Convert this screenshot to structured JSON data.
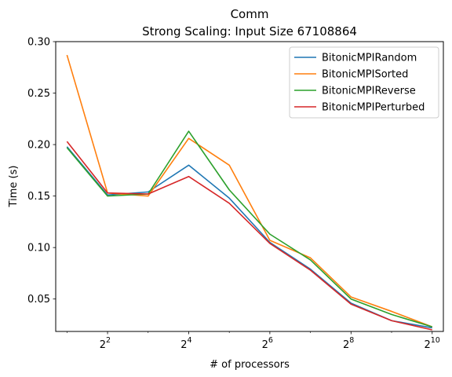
{
  "chart_data": {
    "type": "line",
    "title": "Comm",
    "subtitle": "Strong Scaling: Input Size 67108864",
    "xlabel": "# of processors",
    "ylabel": "Time (s)",
    "x_scale": "log2",
    "x": [
      2,
      4,
      8,
      16,
      32,
      64,
      128,
      256,
      512,
      1024
    ],
    "xlim": [
      1.65,
      1240
    ],
    "ylim": [
      0.0185,
      0.3
    ],
    "x_ticks": [
      {
        "value": 4,
        "base": "2",
        "exp": "2"
      },
      {
        "value": 16,
        "base": "2",
        "exp": "4"
      },
      {
        "value": 64,
        "base": "2",
        "exp": "6"
      },
      {
        "value": 256,
        "base": "2",
        "exp": "8"
      },
      {
        "value": 1024,
        "base": "2",
        "exp": "10"
      }
    ],
    "y_ticks": [
      {
        "value": 0.05,
        "label": "0.05"
      },
      {
        "value": 0.1,
        "label": "0.10"
      },
      {
        "value": 0.15,
        "label": "0.15"
      },
      {
        "value": 0.2,
        "label": "0.20"
      },
      {
        "value": 0.25,
        "label": "0.25"
      },
      {
        "value": 0.3,
        "label": "0.30"
      }
    ],
    "grid": false,
    "legend_position": "top-right",
    "series": [
      {
        "name": "BitonicMPIRandom",
        "color": "#1f77b4",
        "values": [
          0.198,
          0.151,
          0.154,
          0.18,
          0.148,
          0.105,
          0.079,
          0.046,
          0.029,
          0.022
        ]
      },
      {
        "name": "BitonicMPISorted",
        "color": "#ff7f0e",
        "values": [
          0.287,
          0.153,
          0.15,
          0.206,
          0.18,
          0.107,
          0.09,
          0.052,
          0.038,
          0.023
        ]
      },
      {
        "name": "BitonicMPIReverse",
        "color": "#2ca02c",
        "values": [
          0.197,
          0.15,
          0.152,
          0.213,
          0.156,
          0.113,
          0.088,
          0.05,
          0.035,
          0.023
        ]
      },
      {
        "name": "BitonicMPIPerturbed",
        "color": "#d62728",
        "values": [
          0.203,
          0.153,
          0.152,
          0.169,
          0.143,
          0.104,
          0.078,
          0.045,
          0.029,
          0.02
        ]
      }
    ]
  }
}
